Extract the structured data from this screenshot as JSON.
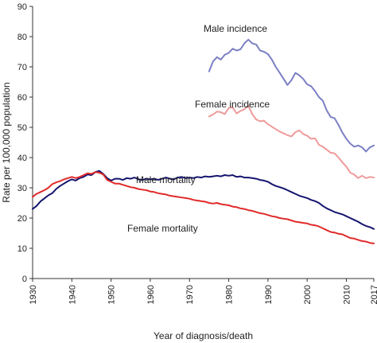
{
  "chart_data": {
    "type": "line",
    "title": "",
    "xlabel": "Year of diagnosis/death",
    "ylabel": "Rate per 100,000 population",
    "xlim": [
      1930,
      2017
    ],
    "ylim": [
      0,
      90
    ],
    "x_ticks": [
      1930,
      1940,
      1950,
      1960,
      1970,
      1980,
      1990,
      2000,
      2010,
      2017
    ],
    "y_ticks": [
      0,
      10,
      20,
      30,
      40,
      50,
      60,
      70,
      80,
      90
    ],
    "grid": false,
    "legend": "none (labels placed directly next to the lines)",
    "series": [
      {
        "name": "Male incidence",
        "color": "#7b80c4",
        "x": [
          1975,
          1976,
          1977,
          1978,
          1979,
          1980,
          1981,
          1982,
          1983,
          1984,
          1985,
          1986,
          1987,
          1988,
          1989,
          1990,
          1991,
          1992,
          1993,
          1994,
          1995,
          1996,
          1997,
          1998,
          1999,
          2000,
          2001,
          2002,
          2003,
          2004,
          2005,
          2006,
          2007,
          2008,
          2009,
          2010,
          2011,
          2012,
          2013,
          2014,
          2015,
          2016,
          2017
        ],
        "y": [
          68.5,
          71.8,
          73.2,
          72.4,
          74,
          74.6,
          76,
          75.4,
          75.8,
          77.8,
          79,
          77.8,
          77.4,
          75.4,
          75,
          74.2,
          72.4,
          70,
          68,
          66,
          64,
          65.6,
          68,
          67.2,
          66,
          64.2,
          63.6,
          62,
          60,
          58.8,
          55.6,
          53.4,
          53,
          50.8,
          48.2,
          46.2,
          44.6,
          43.6,
          44,
          43.4,
          42,
          43.4,
          44
        ]
      },
      {
        "name": "Female incidence",
        "color": "#ef9a9a",
        "x": [
          1975,
          1976,
          1977,
          1978,
          1979,
          1980,
          1981,
          1982,
          1983,
          1984,
          1985,
          1986,
          1987,
          1988,
          1989,
          1990,
          1991,
          1992,
          1993,
          1994,
          1995,
          1996,
          1997,
          1998,
          1999,
          2000,
          2001,
          2002,
          2003,
          2004,
          2005,
          2006,
          2007,
          2008,
          2009,
          2010,
          2011,
          2012,
          2013,
          2014,
          2015,
          2016,
          2017
        ],
        "y": [
          53.6,
          54.2,
          55.2,
          55,
          54.4,
          56.4,
          56.6,
          54.6,
          55.4,
          56,
          57.2,
          54.4,
          52.6,
          52,
          52.2,
          51,
          50.2,
          49.4,
          48.6,
          48,
          47.4,
          47,
          48.4,
          49,
          47.8,
          47.2,
          46.2,
          46.4,
          44.2,
          43.6,
          42.6,
          41.6,
          41.4,
          40,
          38.4,
          37,
          35,
          34.4,
          33.2,
          34,
          33.2,
          33.6,
          33.4
        ]
      },
      {
        "name": "Male mortality",
        "color": "#14146e",
        "x": [
          1930,
          1931,
          1932,
          1933,
          1934,
          1935,
          1936,
          1937,
          1938,
          1939,
          1940,
          1941,
          1942,
          1943,
          1944,
          1945,
          1946,
          1947,
          1948,
          1949,
          1950,
          1951,
          1952,
          1953,
          1954,
          1955,
          1956,
          1957,
          1958,
          1959,
          1960,
          1961,
          1962,
          1963,
          1964,
          1965,
          1966,
          1967,
          1968,
          1969,
          1970,
          1971,
          1972,
          1973,
          1974,
          1975,
          1976,
          1977,
          1978,
          1979,
          1980,
          1981,
          1982,
          1983,
          1984,
          1985,
          1986,
          1987,
          1988,
          1989,
          1990,
          1991,
          1992,
          1993,
          1994,
          1995,
          1996,
          1997,
          1998,
          1999,
          2000,
          2001,
          2002,
          2003,
          2004,
          2005,
          2006,
          2007,
          2008,
          2009,
          2010,
          2011,
          2012,
          2013,
          2014,
          2015,
          2016,
          2017
        ],
        "y": [
          23,
          24,
          25.5,
          26.5,
          27.5,
          28.2,
          29.6,
          30.6,
          31.4,
          32.2,
          32.8,
          32.4,
          33.2,
          33.6,
          34.4,
          34.2,
          35.2,
          35.6,
          34.6,
          33.2,
          32.4,
          33,
          33,
          32.6,
          33.2,
          33,
          33.4,
          32.8,
          32.6,
          33,
          32.8,
          33,
          32.6,
          33,
          33.4,
          33,
          32.8,
          33.4,
          33.6,
          33.2,
          33.4,
          33.2,
          33.6,
          33.4,
          33.8,
          33.6,
          33.8,
          34,
          33.8,
          34.2,
          34,
          34.2,
          33.6,
          33.8,
          33.4,
          33.4,
          33.2,
          33,
          32.6,
          32.4,
          32,
          31.2,
          30.6,
          30.2,
          29.8,
          29.2,
          28.6,
          28,
          27.4,
          27,
          26.6,
          26,
          25.6,
          25,
          24,
          23.2,
          22.6,
          22,
          21.6,
          21.2,
          20.6,
          20,
          19.4,
          18.8,
          18,
          17.4,
          17,
          16.4
        ]
      },
      {
        "name": "Female mortality",
        "color": "#e02a2a",
        "x": [
          1930,
          1931,
          1932,
          1933,
          1934,
          1935,
          1936,
          1937,
          1938,
          1939,
          1940,
          1941,
          1942,
          1943,
          1944,
          1945,
          1946,
          1947,
          1948,
          1949,
          1950,
          1951,
          1952,
          1953,
          1954,
          1955,
          1956,
          1957,
          1958,
          1959,
          1960,
          1961,
          1962,
          1963,
          1964,
          1965,
          1966,
          1967,
          1968,
          1969,
          1970,
          1971,
          1972,
          1973,
          1974,
          1975,
          1976,
          1977,
          1978,
          1979,
          1980,
          1981,
          1982,
          1983,
          1984,
          1985,
          1986,
          1987,
          1988,
          1989,
          1990,
          1991,
          1992,
          1993,
          1994,
          1995,
          1996,
          1997,
          1998,
          1999,
          2000,
          2001,
          2002,
          2003,
          2004,
          2005,
          2006,
          2007,
          2008,
          2009,
          2010,
          2011,
          2012,
          2013,
          2014,
          2015,
          2016,
          2017
        ],
        "y": [
          27,
          28,
          28.6,
          29.2,
          30,
          31.2,
          31.8,
          32.2,
          32.8,
          33.2,
          33.6,
          33.2,
          33.6,
          34.2,
          34.8,
          34.6,
          35.2,
          35,
          34.4,
          32.6,
          32,
          31.4,
          31.4,
          31,
          30.6,
          30.2,
          30,
          29.6,
          29.4,
          29.2,
          28.8,
          28.6,
          28.2,
          28,
          27.8,
          27.4,
          27.2,
          27,
          26.8,
          26.6,
          26.4,
          26,
          25.8,
          25.6,
          25.4,
          25,
          24.8,
          25,
          24.6,
          24.4,
          24.2,
          23.8,
          23.6,
          23.2,
          23,
          22.6,
          22.4,
          22,
          21.6,
          21.4,
          21,
          20.6,
          20.4,
          20,
          19.8,
          19.6,
          19.2,
          18.8,
          18.6,
          18.4,
          18.2,
          17.8,
          17.6,
          17.2,
          16.6,
          16,
          15.4,
          15.2,
          14.8,
          14.6,
          14,
          13.4,
          13.2,
          12.8,
          12.4,
          12.2,
          11.8,
          11.6
        ]
      }
    ]
  }
}
